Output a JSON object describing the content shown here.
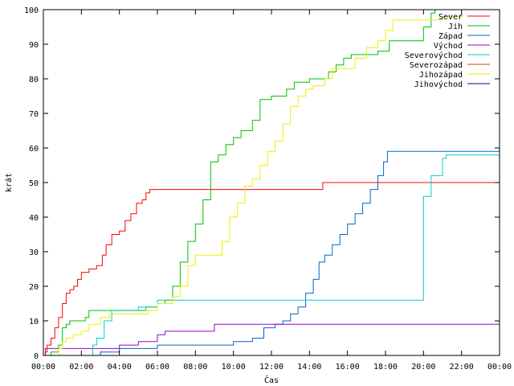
{
  "chart_data": {
    "type": "line",
    "xlabel": "Čas",
    "ylabel": "krát",
    "xlim": [
      0,
      24
    ],
    "ylim": [
      0,
      100
    ],
    "xticks": [
      {
        "value": 0,
        "label": "00:00"
      },
      {
        "value": 2,
        "label": "02:00"
      },
      {
        "value": 4,
        "label": "04:00"
      },
      {
        "value": 6,
        "label": "06:00"
      },
      {
        "value": 8,
        "label": "08:00"
      },
      {
        "value": 10,
        "label": "10:00"
      },
      {
        "value": 12,
        "label": "12:00"
      },
      {
        "value": 14,
        "label": "14:00"
      },
      {
        "value": 16,
        "label": "16:00"
      },
      {
        "value": 18,
        "label": "18:00"
      },
      {
        "value": 20,
        "label": "20:00"
      },
      {
        "value": 22,
        "label": "22:00"
      },
      {
        "value": 24,
        "label": "00:00"
      }
    ],
    "yticks": [
      0,
      10,
      20,
      30,
      40,
      50,
      60,
      70,
      80,
      90,
      100
    ],
    "grid": false,
    "legend_position": "top-right",
    "series": [
      {
        "name": "Sever",
        "color": "#ff0000",
        "points": [
          [
            0,
            0
          ],
          [
            0.1,
            1
          ],
          [
            0.2,
            3
          ],
          [
            0.4,
            5
          ],
          [
            0.6,
            8
          ],
          [
            0.8,
            11
          ],
          [
            1.0,
            15
          ],
          [
            1.2,
            18
          ],
          [
            1.4,
            19
          ],
          [
            1.6,
            20
          ],
          [
            1.8,
            22
          ],
          [
            2.0,
            24
          ],
          [
            2.4,
            25
          ],
          [
            2.8,
            26
          ],
          [
            3.1,
            29
          ],
          [
            3.3,
            32
          ],
          [
            3.6,
            35
          ],
          [
            4.0,
            36
          ],
          [
            4.3,
            39
          ],
          [
            4.6,
            41
          ],
          [
            4.9,
            44
          ],
          [
            5.2,
            45
          ],
          [
            5.4,
            47
          ],
          [
            5.6,
            48
          ],
          [
            8,
            48
          ],
          [
            10,
            48
          ],
          [
            12,
            48
          ],
          [
            14,
            48
          ],
          [
            14.6,
            48
          ],
          [
            14.7,
            50
          ],
          [
            16,
            50
          ],
          [
            20,
            50
          ],
          [
            22,
            50
          ],
          [
            24,
            50
          ]
        ]
      },
      {
        "name": "Jih",
        "color": "#00c000",
        "points": [
          [
            0,
            0
          ],
          [
            0.4,
            1
          ],
          [
            0.8,
            3
          ],
          [
            1.0,
            8
          ],
          [
            1.2,
            9
          ],
          [
            1.4,
            10
          ],
          [
            2.0,
            10
          ],
          [
            2.2,
            11
          ],
          [
            2.4,
            13
          ],
          [
            3.0,
            13
          ],
          [
            4.0,
            13
          ],
          [
            5.0,
            13
          ],
          [
            5.4,
            14
          ],
          [
            6.0,
            15
          ],
          [
            6.4,
            16
          ],
          [
            6.8,
            20
          ],
          [
            7.2,
            27
          ],
          [
            7.6,
            33
          ],
          [
            8.0,
            38
          ],
          [
            8.4,
            45
          ],
          [
            8.8,
            56
          ],
          [
            9.2,
            58
          ],
          [
            9.6,
            61
          ],
          [
            10.0,
            63
          ],
          [
            10.4,
            65
          ],
          [
            11.0,
            68
          ],
          [
            11.4,
            74
          ],
          [
            12.0,
            75
          ],
          [
            12.8,
            77
          ],
          [
            13.2,
            79
          ],
          [
            14.0,
            80
          ],
          [
            15.0,
            82
          ],
          [
            15.4,
            84
          ],
          [
            15.8,
            86
          ],
          [
            16.2,
            87
          ],
          [
            17.0,
            87
          ],
          [
            17.6,
            88
          ],
          [
            18.2,
            91
          ],
          [
            19.6,
            91
          ],
          [
            20.0,
            95
          ],
          [
            20.4,
            99
          ],
          [
            20.6,
            100
          ],
          [
            24,
            100
          ]
        ]
      },
      {
        "name": "Západ",
        "color": "#0066cc",
        "points": [
          [
            0,
            0
          ],
          [
            1.5,
            0
          ],
          [
            3.0,
            1
          ],
          [
            4.0,
            2
          ],
          [
            5.0,
            2
          ],
          [
            6.0,
            3
          ],
          [
            8.0,
            3
          ],
          [
            10.0,
            4
          ],
          [
            11.0,
            5
          ],
          [
            11.6,
            8
          ],
          [
            12.2,
            9
          ],
          [
            12.6,
            10
          ],
          [
            13.0,
            12
          ],
          [
            13.4,
            14
          ],
          [
            13.8,
            18
          ],
          [
            14.2,
            22
          ],
          [
            14.5,
            27
          ],
          [
            14.8,
            29
          ],
          [
            15.2,
            32
          ],
          [
            15.6,
            35
          ],
          [
            16.0,
            38
          ],
          [
            16.4,
            41
          ],
          [
            16.8,
            44
          ],
          [
            17.2,
            48
          ],
          [
            17.6,
            52
          ],
          [
            17.9,
            56
          ],
          [
            18.1,
            59
          ],
          [
            20,
            59
          ],
          [
            22,
            59
          ],
          [
            24,
            59
          ]
        ]
      },
      {
        "name": "Východ",
        "color": "#9900cc",
        "points": [
          [
            0,
            0
          ],
          [
            0.1,
            2
          ],
          [
            3.0,
            2
          ],
          [
            4.0,
            3
          ],
          [
            5.0,
            4
          ],
          [
            6.0,
            6
          ],
          [
            6.4,
            7
          ],
          [
            8.0,
            7
          ],
          [
            9.0,
            9
          ],
          [
            12,
            9
          ],
          [
            16,
            9
          ],
          [
            20,
            9
          ],
          [
            24,
            9
          ]
        ]
      },
      {
        "name": "Severovýchod",
        "color": "#00cccc",
        "points": [
          [
            0,
            0
          ],
          [
            2.4,
            0
          ],
          [
            2.6,
            3
          ],
          [
            2.8,
            5
          ],
          [
            3.2,
            10
          ],
          [
            3.6,
            13
          ],
          [
            4.0,
            13
          ],
          [
            5.0,
            14
          ],
          [
            6.0,
            16
          ],
          [
            8.0,
            16
          ],
          [
            10.0,
            16
          ],
          [
            12.0,
            16
          ],
          [
            14.0,
            16
          ],
          [
            16.0,
            16
          ],
          [
            18.0,
            16
          ],
          [
            18.6,
            16
          ],
          [
            20.0,
            46
          ],
          [
            20.4,
            52
          ],
          [
            20.8,
            52
          ],
          [
            21.0,
            57
          ],
          [
            21.2,
            58
          ],
          [
            24,
            58
          ]
        ]
      },
      {
        "name": "Severozápad",
        "color": "#cc4400",
        "points": [
          [
            0,
            0
          ],
          [
            24,
            0
          ]
        ]
      },
      {
        "name": "Jihozápad",
        "color": "#eeee00",
        "points": [
          [
            0,
            0
          ],
          [
            0.6,
            0
          ],
          [
            0.8,
            2
          ],
          [
            1.0,
            4
          ],
          [
            1.2,
            5
          ],
          [
            1.6,
            6
          ],
          [
            2.0,
            7
          ],
          [
            2.4,
            9
          ],
          [
            3.0,
            11
          ],
          [
            3.5,
            12
          ],
          [
            4.0,
            12
          ],
          [
            5.5,
            13
          ],
          [
            6.0,
            15
          ],
          [
            6.8,
            17
          ],
          [
            7.2,
            20
          ],
          [
            7.6,
            26
          ],
          [
            8.0,
            29
          ],
          [
            9.0,
            29
          ],
          [
            9.4,
            33
          ],
          [
            9.8,
            40
          ],
          [
            10.2,
            44
          ],
          [
            10.6,
            49
          ],
          [
            11.0,
            51
          ],
          [
            11.4,
            55
          ],
          [
            11.8,
            59
          ],
          [
            12.2,
            62
          ],
          [
            12.6,
            67
          ],
          [
            13.0,
            72
          ],
          [
            13.4,
            75
          ],
          [
            13.8,
            77
          ],
          [
            14.2,
            78
          ],
          [
            14.8,
            80
          ],
          [
            15.2,
            83
          ],
          [
            16.0,
            83
          ],
          [
            16.4,
            86
          ],
          [
            17.0,
            89
          ],
          [
            17.6,
            91
          ],
          [
            18.0,
            94
          ],
          [
            18.4,
            97
          ],
          [
            20.0,
            97
          ],
          [
            21.0,
            98
          ],
          [
            22.0,
            100
          ],
          [
            24,
            100
          ]
        ]
      },
      {
        "name": "Jihovýchod",
        "color": "#000099",
        "points": [
          [
            0,
            0
          ],
          [
            24,
            0
          ]
        ]
      }
    ]
  }
}
